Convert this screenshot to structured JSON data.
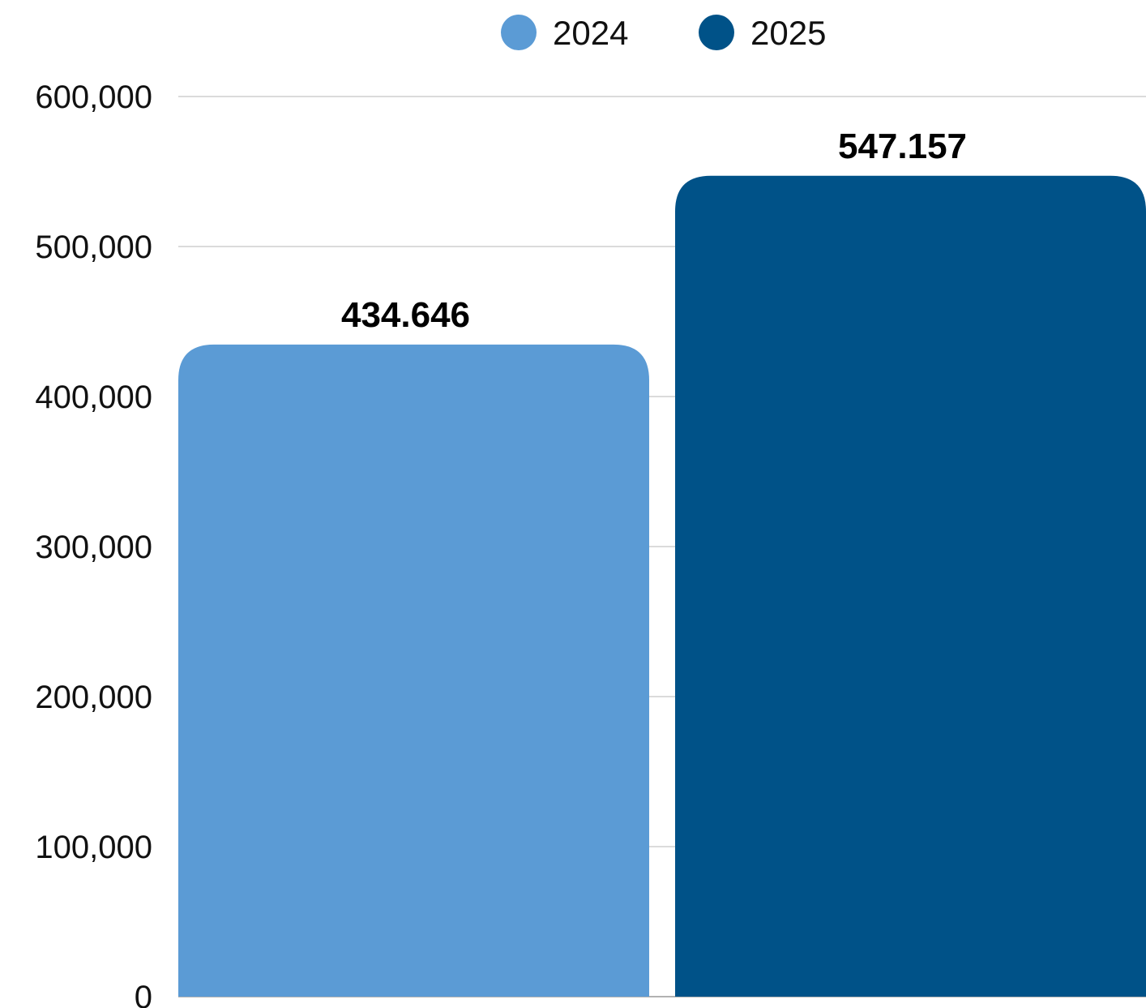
{
  "chart_data": {
    "type": "bar",
    "title": "",
    "xlabel": "",
    "ylabel": "",
    "ylim": [
      0,
      600000
    ],
    "yticks": [
      0,
      100000,
      200000,
      300000,
      400000,
      500000,
      600000
    ],
    "ytick_labels": [
      "0",
      "100,000",
      "200,000",
      "300,000",
      "400,000",
      "500,000",
      "600,000"
    ],
    "grid": true,
    "legend_position": "top-center",
    "series": [
      {
        "name": "2024",
        "value": 434646,
        "data_label": "434.646",
        "color": "#5b9bd5"
      },
      {
        "name": "2025",
        "value": 547157,
        "data_label": "547.157",
        "color": "#005288"
      }
    ]
  }
}
